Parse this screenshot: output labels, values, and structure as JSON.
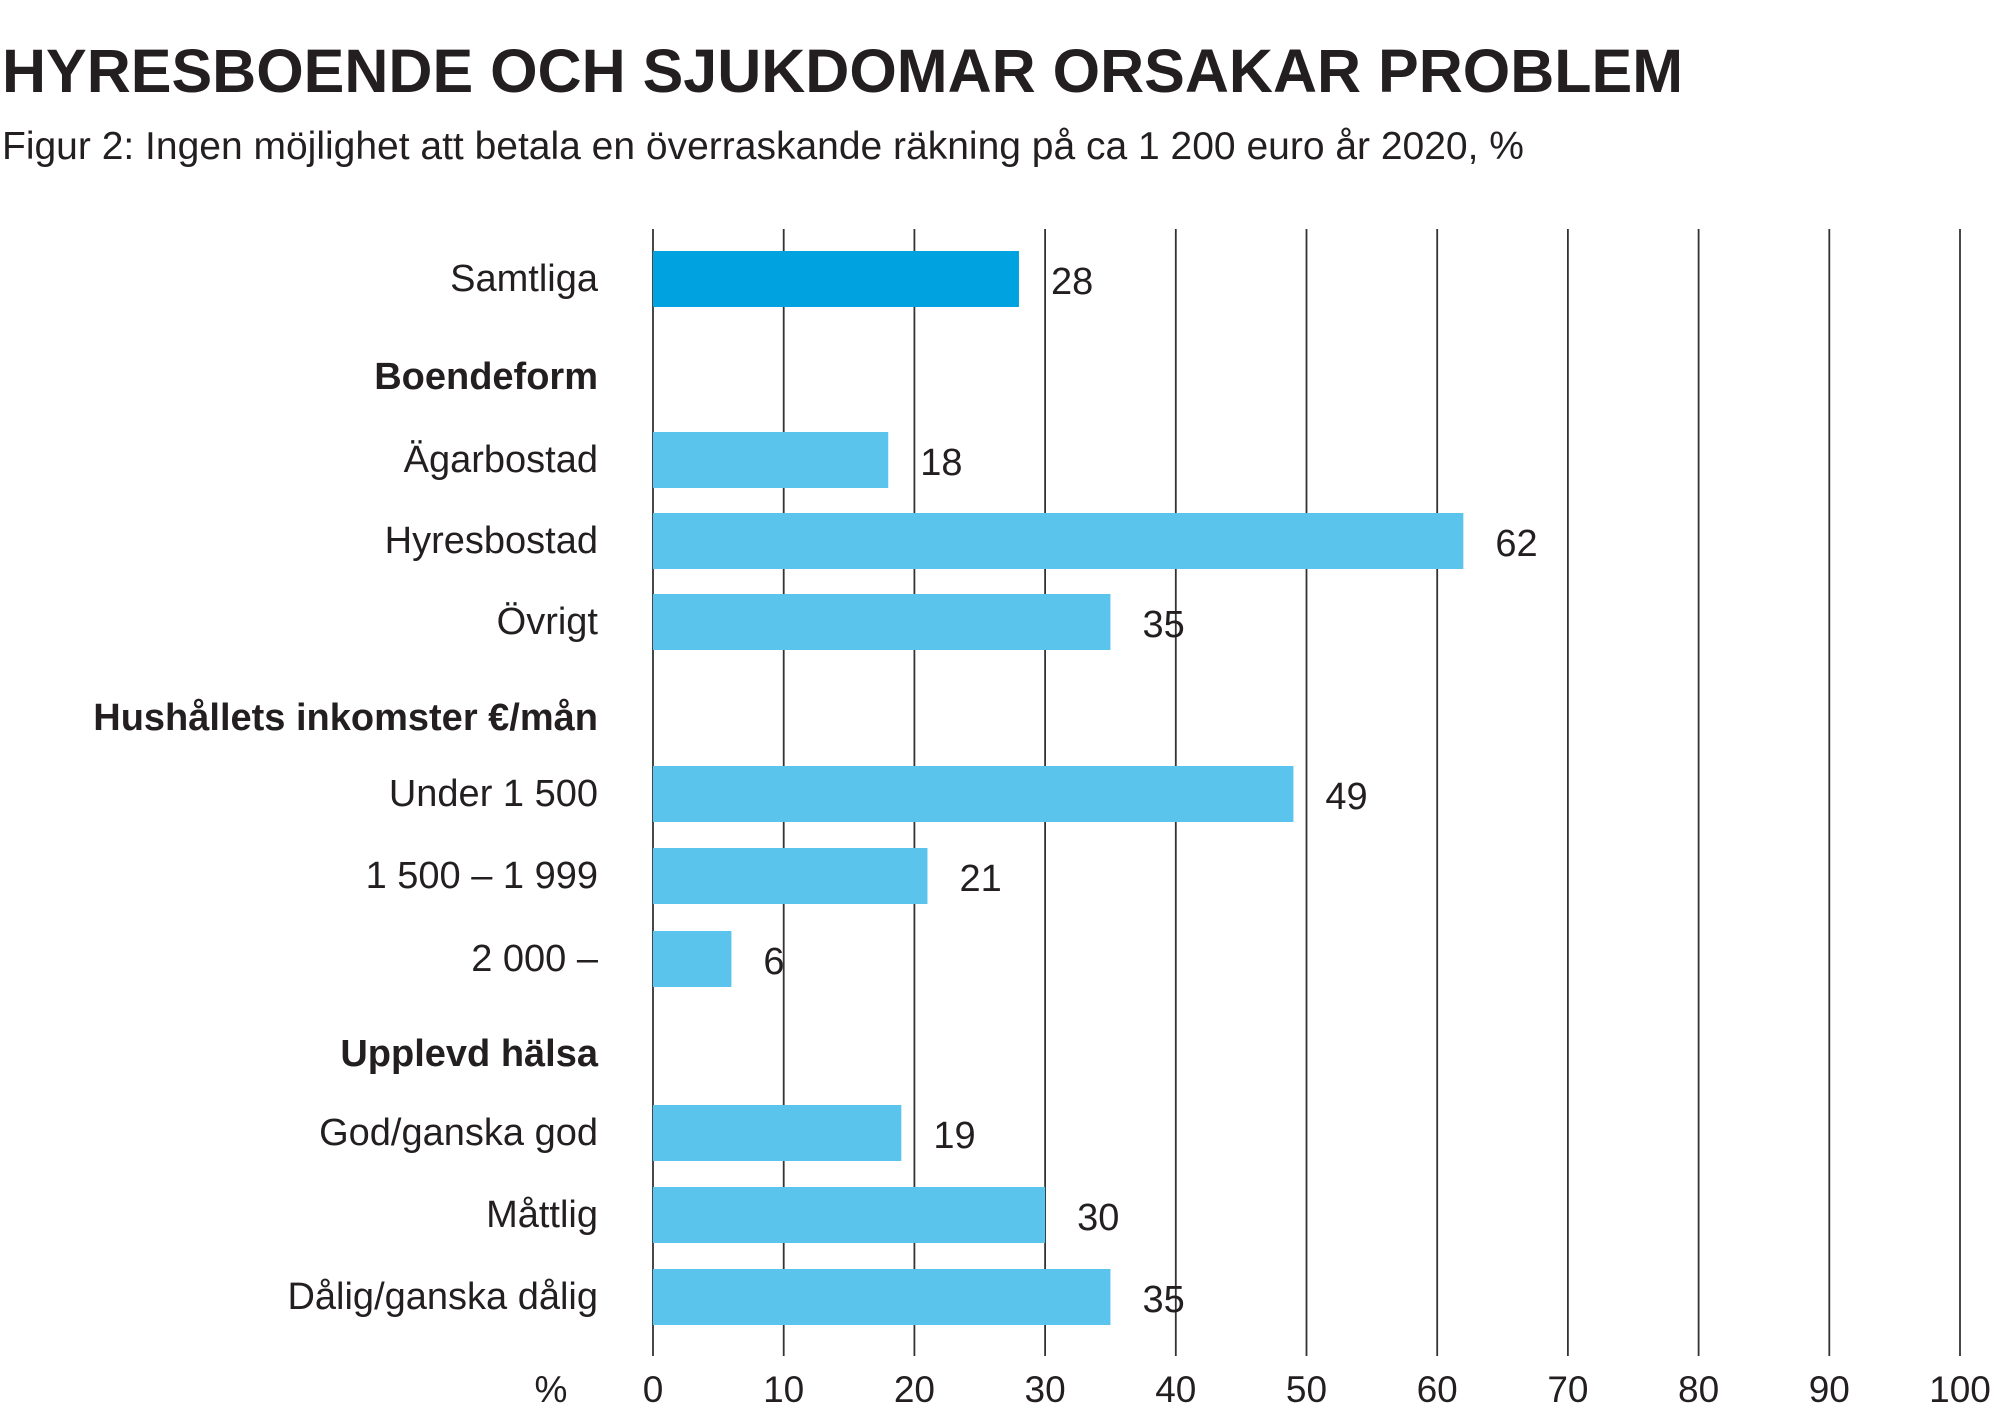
{
  "title": "HYRESBOENDE OCH SJUKDOMAR ORSAKAR PROBLEM",
  "subtitle": "Figur 2: Ingen möjlighet att betala en överraskande räkning på ca 1 200 euro år 2020, %",
  "colors": {
    "highlight_bar": "#00A3E0",
    "bar": "#5BC4EC",
    "grid": "#333333",
    "text": "#231f20"
  },
  "chart_data": {
    "type": "bar",
    "orientation": "horizontal",
    "axis_unit": "%",
    "xlim": [
      0,
      100
    ],
    "xticks": [
      0,
      10,
      20,
      30,
      40,
      50,
      60,
      70,
      80,
      90,
      100
    ],
    "grid": true,
    "rows": [
      {
        "label": "Samtliga",
        "value": 28,
        "highlight": true
      },
      {
        "label": "Boendeform",
        "heading": true
      },
      {
        "label": "Ägarbostad",
        "value": 18
      },
      {
        "label": "Hyresbostad",
        "value": 62
      },
      {
        "label": "Övrigt",
        "value": 35
      },
      {
        "label": "Hushållets inkomster €/mån",
        "heading": true
      },
      {
        "label": "Under 1 500",
        "value": 49
      },
      {
        "label": "1 500 – 1 999",
        "value": 21
      },
      {
        "label": "2 000 –",
        "value": 6
      },
      {
        "label": "Upplevd hälsa",
        "heading": true
      },
      {
        "label": "God/ganska god",
        "value": 19
      },
      {
        "label": "Måttlig",
        "value": 30
      },
      {
        "label": "Dålig/ganska dålig",
        "value": 35
      }
    ]
  }
}
